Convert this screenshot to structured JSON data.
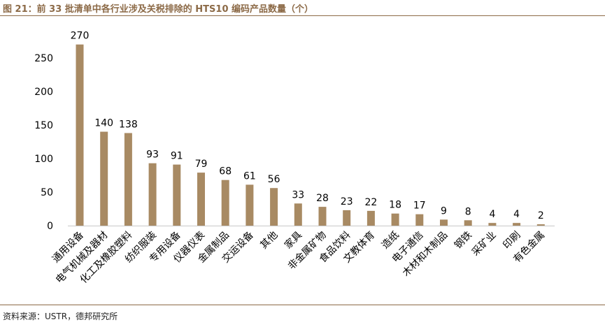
{
  "header": {
    "title": "图 21：前 33 批清单中各行业涉及关税排除的 HTS10 编码产品数量（个）"
  },
  "footer": {
    "source": "资料来源：USTR，德邦研究所"
  },
  "chart_data": {
    "type": "bar",
    "categories": [
      "通用设备",
      "电气机械及器材",
      "化工及橡胶塑料",
      "纺织服装",
      "专用设备",
      "仪器仪表",
      "金属制品",
      "交运设备",
      "其他",
      "家具",
      "非金属矿物",
      "食品饮料",
      "文教体育",
      "造纸",
      "电子通信",
      "木材和木制品",
      "钢铁",
      "采矿业",
      "印刷",
      "有色金属"
    ],
    "values": [
      270,
      140,
      138,
      93,
      91,
      79,
      68,
      61,
      56,
      33,
      28,
      23,
      22,
      18,
      17,
      9,
      8,
      4,
      4,
      2
    ],
    "yticks": [
      0,
      50,
      100,
      150,
      200,
      250
    ],
    "ylim": [
      0,
      270
    ],
    "grid": false,
    "legend": "none",
    "bar_color": "#a88a63"
  }
}
